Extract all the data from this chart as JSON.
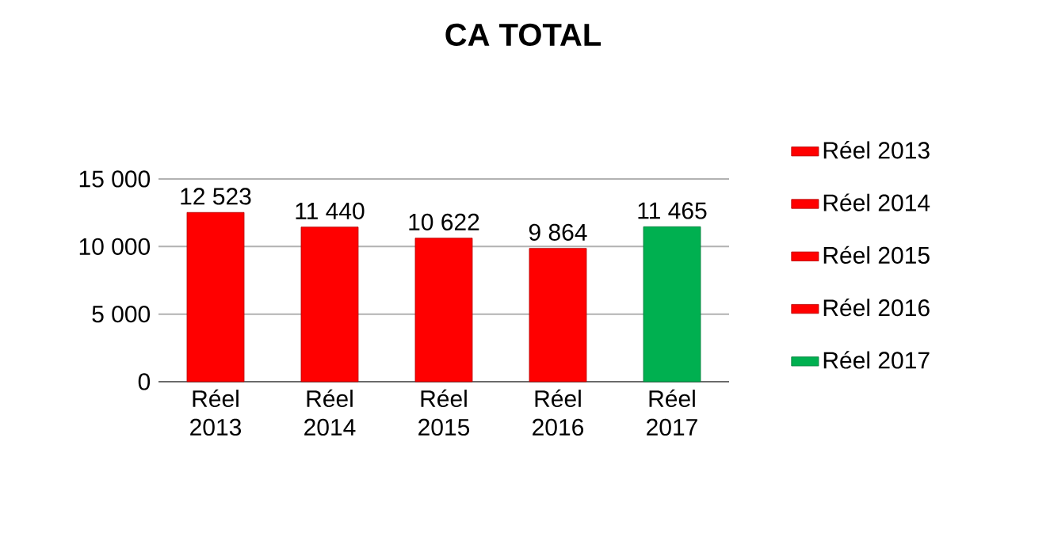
{
  "chart_data": {
    "type": "bar",
    "title": "CA TOTAL",
    "categories": [
      "Réel 2013",
      "Réel 2014",
      "Réel 2015",
      "Réel 2016",
      "Réel 2017"
    ],
    "series": [
      {
        "name": "Réel 2013",
        "color": "#ff0000",
        "values": [
          12523,
          null,
          null,
          null,
          null
        ],
        "value_labels": [
          "12 523",
          null,
          null,
          null,
          null
        ]
      },
      {
        "name": "Réel 2014",
        "color": "#ff0000",
        "values": [
          null,
          11440,
          null,
          null,
          null
        ],
        "value_labels": [
          null,
          "11 440",
          null,
          null,
          null
        ]
      },
      {
        "name": "Réel 2015",
        "color": "#ff0000",
        "values": [
          null,
          null,
          10622,
          null,
          null
        ],
        "value_labels": [
          null,
          null,
          "10 622",
          null,
          null
        ]
      },
      {
        "name": "Réel 2016",
        "color": "#ff0000",
        "values": [
          null,
          null,
          null,
          9864,
          null
        ],
        "value_labels": [
          null,
          null,
          null,
          "9 864",
          null
        ]
      },
      {
        "name": "Réel 2017",
        "color": "#00b050",
        "values": [
          null,
          null,
          null,
          null,
          11465
        ],
        "value_labels": [
          null,
          null,
          null,
          null,
          "11 465"
        ]
      }
    ],
    "ylim": [
      0,
      15000
    ],
    "yticks": [
      {
        "value": 0,
        "label": "0"
      },
      {
        "value": 5000,
        "label": "5 000"
      },
      {
        "value": 10000,
        "label": "10 000"
      },
      {
        "value": 15000,
        "label": "15 000"
      }
    ],
    "grid": "y",
    "legend": "right"
  }
}
